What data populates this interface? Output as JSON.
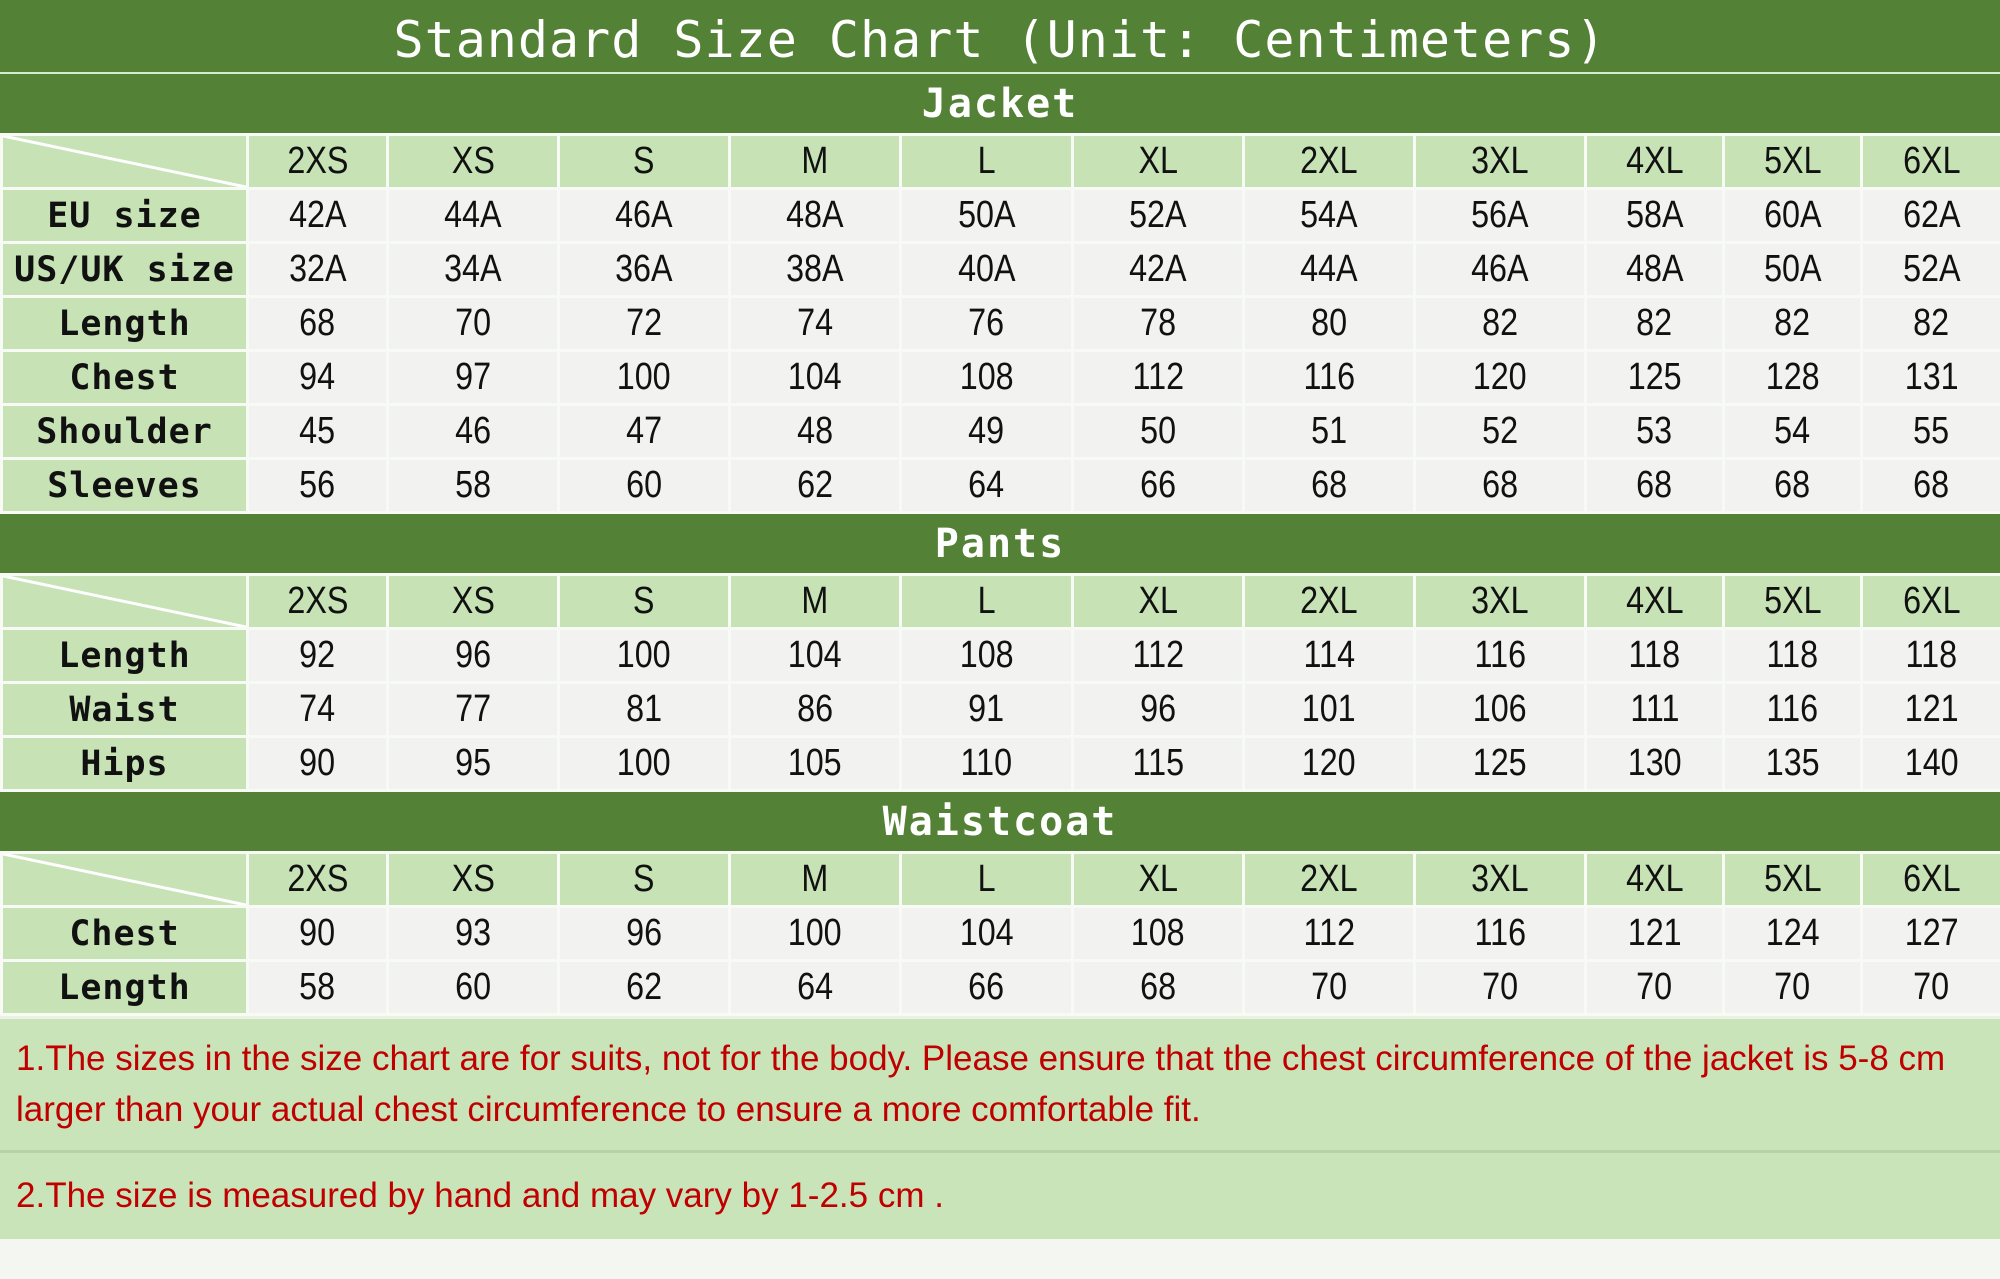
{
  "title": "Standard Size Chart (Unit: Centimeters)",
  "colors": {
    "dark_green": "#538135",
    "light_green": "#c7e3b6",
    "note_red": "#c00000"
  },
  "sizes": [
    "2XS",
    "XS",
    "S",
    "M",
    "L",
    "XL",
    "2XL",
    "3XL",
    "4XL",
    "5XL",
    "6XL"
  ],
  "sections": [
    {
      "name": "Jacket",
      "rows": [
        {
          "label": "EU size",
          "values": [
            "42A",
            "44A",
            "46A",
            "48A",
            "50A",
            "52A",
            "54A",
            "56A",
            "58A",
            "60A",
            "62A"
          ]
        },
        {
          "label": "US/UK size",
          "values": [
            "32A",
            "34A",
            "36A",
            "38A",
            "40A",
            "42A",
            "44A",
            "46A",
            "48A",
            "50A",
            "52A"
          ]
        },
        {
          "label": "Length",
          "values": [
            "68",
            "70",
            "72",
            "74",
            "76",
            "78",
            "80",
            "82",
            "82",
            "82",
            "82"
          ]
        },
        {
          "label": "Chest",
          "values": [
            "94",
            "97",
            "100",
            "104",
            "108",
            "112",
            "116",
            "120",
            "125",
            "128",
            "131"
          ]
        },
        {
          "label": "Shoulder",
          "values": [
            "45",
            "46",
            "47",
            "48",
            "49",
            "50",
            "51",
            "52",
            "53",
            "54",
            "55"
          ]
        },
        {
          "label": "Sleeves",
          "values": [
            "56",
            "58",
            "60",
            "62",
            "64",
            "66",
            "68",
            "68",
            "68",
            "68",
            "68"
          ]
        }
      ]
    },
    {
      "name": "Pants",
      "rows": [
        {
          "label": "Length",
          "values": [
            "92",
            "96",
            "100",
            "104",
            "108",
            "112",
            "114",
            "116",
            "118",
            "118",
            "118"
          ]
        },
        {
          "label": "Waist",
          "values": [
            "74",
            "77",
            "81",
            "86",
            "91",
            "96",
            "101",
            "106",
            "111",
            "116",
            "121"
          ]
        },
        {
          "label": "Hips",
          "values": [
            "90",
            "95",
            "100",
            "105",
            "110",
            "115",
            "120",
            "125",
            "130",
            "135",
            "140"
          ]
        }
      ]
    },
    {
      "name": "Waistcoat",
      "rows": [
        {
          "label": "Chest",
          "values": [
            "90",
            "93",
            "96",
            "100",
            "104",
            "108",
            "112",
            "116",
            "121",
            "124",
            "127"
          ]
        },
        {
          "label": "Length",
          "values": [
            "58",
            "60",
            "62",
            "64",
            "66",
            "68",
            "70",
            "70",
            "70",
            "70",
            "70"
          ]
        }
      ]
    }
  ],
  "notes": [
    "1.The sizes in the size chart are for suits, not for the body. Please ensure that the chest circumference of the jacket is 5-8 cm larger than your actual chest circumference to ensure a more comfortable fit.",
    "2.The size is measured by hand and may vary by 1-2.5 cm ."
  ]
}
